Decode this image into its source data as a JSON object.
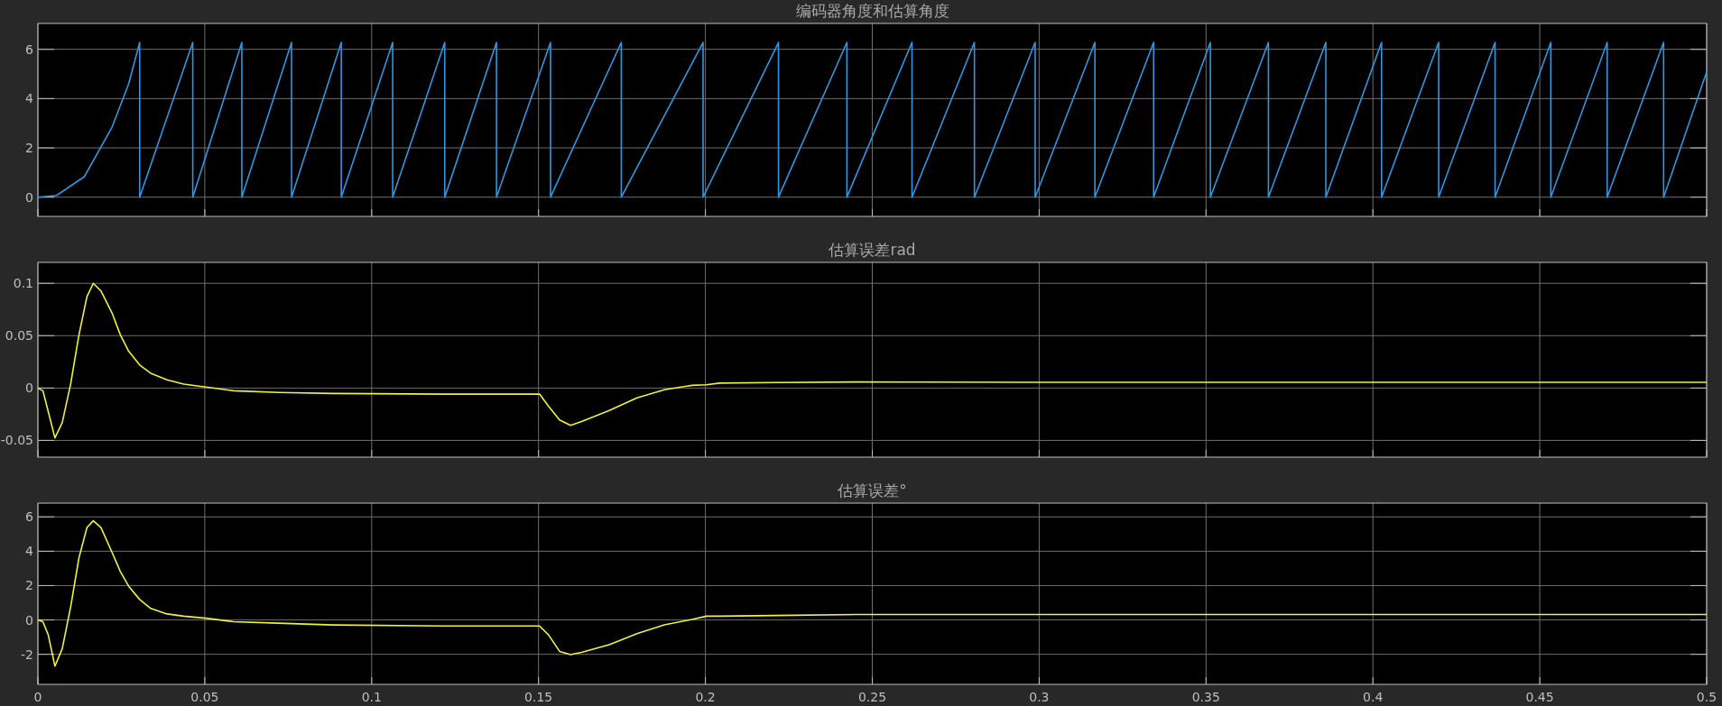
{
  "chart_data": [
    {
      "type": "line",
      "title": "编码器角度和估算角度",
      "xlim": [
        0,
        0.5
      ],
      "xticks": [
        0,
        0.05,
        0.1,
        0.15,
        0.2,
        0.25,
        0.3,
        0.35,
        0.4,
        0.45,
        0.5
      ],
      "ylim": [
        -0.78,
        7.05
      ],
      "yticks": [
        0,
        2,
        4,
        6
      ],
      "grid": true,
      "tick_labels": "y",
      "x": [
        0,
        0.0056,
        0.0139,
        0.0222,
        0.0272,
        0.0305,
        0.0305,
        0.0464,
        0.0464,
        0.0611,
        0.0611,
        0.076,
        0.076,
        0.0909,
        0.0909,
        0.1063,
        0.1063,
        0.1219,
        0.1219,
        0.1374,
        0.1374,
        0.1536,
        0.1536,
        0.1748,
        0.1748,
        0.1993,
        0.1993,
        0.2219,
        0.2219,
        0.2424,
        0.2424,
        0.2619,
        0.2619,
        0.2806,
        0.2806,
        0.2988,
        0.2988,
        0.3167,
        0.3167,
        0.3343,
        0.3343,
        0.3513,
        0.3513,
        0.3687,
        0.3687,
        0.3859,
        0.3859,
        0.4026,
        0.4026,
        0.4197,
        0.4197,
        0.4366,
        0.4366,
        0.4533,
        0.4533,
        0.4702,
        0.4702,
        0.4871,
        0.4871,
        0.5
      ],
      "series": [
        {
          "color": "#2f97e0",
          "values": [
            0,
            0.07,
            0.83,
            2.84,
            4.6,
            6.28,
            0,
            6.28,
            0,
            6.28,
            0,
            6.28,
            0,
            6.28,
            0,
            6.28,
            0,
            6.28,
            0,
            6.28,
            0,
            6.28,
            0,
            6.28,
            0,
            6.28,
            0,
            6.28,
            0,
            6.28,
            0,
            6.28,
            0,
            6.28,
            0,
            6.28,
            0,
            6.28,
            0,
            6.28,
            0,
            6.28,
            0,
            6.28,
            0,
            6.28,
            0,
            6.28,
            0,
            6.28,
            0,
            6.28,
            0,
            6.28,
            0,
            6.28,
            0,
            6.28,
            0,
            5.08
          ]
        }
      ]
    },
    {
      "type": "line",
      "title": "估算误差rad",
      "xlim": [
        0,
        0.5
      ],
      "xticks": [
        0,
        0.05,
        0.1,
        0.15,
        0.2,
        0.25,
        0.3,
        0.35,
        0.4,
        0.45,
        0.5
      ],
      "ylim": [
        -0.066,
        0.12
      ],
      "yticks": [
        -0.05,
        0,
        0.05,
        0.1
      ],
      "grid": true,
      "tick_labels": "y",
      "x": [
        0,
        0.0015,
        0.0031,
        0.0051,
        0.0073,
        0.0098,
        0.0123,
        0.0147,
        0.0166,
        0.0189,
        0.0222,
        0.0247,
        0.0272,
        0.0305,
        0.0338,
        0.0387,
        0.0437,
        0.0503,
        0.0586,
        0.0719,
        0.0884,
        0.1215,
        0.1503,
        0.153,
        0.1563,
        0.1596,
        0.1629,
        0.1712,
        0.1795,
        0.1877,
        0.196,
        0.2003,
        0.2043,
        0.2209,
        0.2457,
        0.3,
        0.4,
        0.5
      ],
      "series": [
        {
          "color": "#f2f23a",
          "values": [
            0,
            -0.0026,
            -0.0225,
            -0.0476,
            -0.033,
            0.0037,
            0.0508,
            0.0874,
            0.1,
            0.0927,
            0.0717,
            0.0508,
            0.0351,
            0.022,
            0.0141,
            0.0079,
            0.0037,
            0.001,
            -0.0026,
            -0.0042,
            -0.0052,
            -0.0058,
            -0.0058,
            -0.0173,
            -0.0304,
            -0.0356,
            -0.032,
            -0.0215,
            -0.0094,
            -0.0016,
            0.0026,
            0.0031,
            0.0047,
            0.0052,
            0.0058,
            0.0055,
            0.0055,
            0.0055
          ]
        }
      ]
    },
    {
      "type": "line",
      "title": "估算误差°",
      "xlim": [
        0,
        0.5
      ],
      "xticks": [
        0,
        0.05,
        0.1,
        0.15,
        0.2,
        0.25,
        0.3,
        0.35,
        0.4,
        0.45,
        0.5
      ],
      "ylim": [
        -3.75,
        6.8
      ],
      "yticks": [
        -2,
        0,
        2,
        4,
        6
      ],
      "grid": true,
      "x": [
        0,
        0.0015,
        0.0031,
        0.0051,
        0.0073,
        0.0098,
        0.0123,
        0.0147,
        0.0166,
        0.0189,
        0.0222,
        0.0247,
        0.0272,
        0.0305,
        0.0338,
        0.0387,
        0.0437,
        0.0503,
        0.0586,
        0.0719,
        0.0884,
        0.1215,
        0.1503,
        0.153,
        0.1563,
        0.1596,
        0.1629,
        0.1712,
        0.1795,
        0.1877,
        0.196,
        0.2003,
        0.2043,
        0.2209,
        0.2457,
        0.3,
        0.4,
        0.5
      ],
      "series": [
        {
          "color": "#f2f23a",
          "values": [
            0,
            -0.1,
            -0.87,
            -2.69,
            -1.67,
            0.74,
            3.62,
            5.38,
            5.77,
            5.38,
            3.94,
            2.82,
            1.96,
            1.19,
            0.67,
            0.35,
            0.22,
            0.1,
            -0.1,
            -0.19,
            -0.29,
            -0.35,
            -0.35,
            -0.87,
            -1.83,
            -2.02,
            -1.89,
            -1.44,
            -0.8,
            -0.29,
            0.03,
            0.22,
            0.22,
            0.26,
            0.32,
            0.32,
            0.32,
            0.32
          ]
        }
      ]
    }
  ]
}
